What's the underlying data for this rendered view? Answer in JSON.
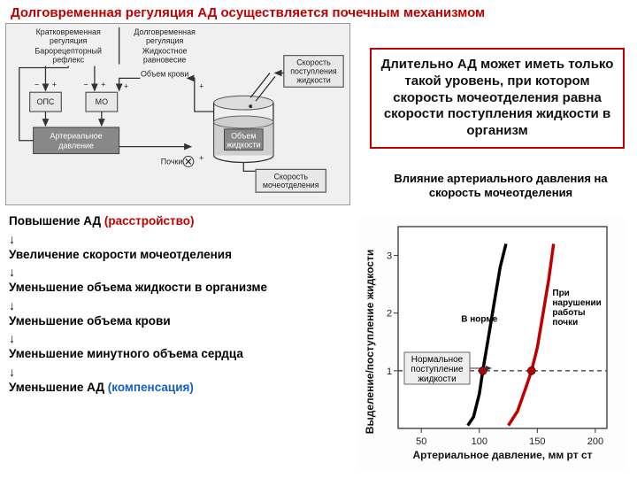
{
  "title": "Долговременная регуляция АД осуществляется почечным механизмом",
  "diagram": {
    "col1_title_l1": "Кратковременная",
    "col1_title_l2": "регуляция",
    "col1_sub_l1": "Барорецепторный",
    "col1_sub_l2": "рефлекс",
    "col2_title_l1": "Долговременная",
    "col2_title_l2": "регуляция",
    "col2_sub_l1": "Жидкостное",
    "col2_sub_l2": "равновесие",
    "ops": "ОПС",
    "mo": "МО",
    "ap_l1": "Артериальное",
    "ap_l2": "давление",
    "vol_l1": "Объем крови",
    "pochki": "Почки",
    "obj_zhid_l1": "Объем",
    "obj_zhid_l2": "жидкости",
    "rate_in_l1": "Скорость",
    "rate_in_l2": "поступления",
    "rate_in_l3": "жидкости",
    "rate_out_l1": "Скорость",
    "rate_out_l2": "мочеотделения"
  },
  "callout": "Длительно АД может иметь только такой уровень, при котором скорость мочеотделения равна скорости поступления жидкости в организм",
  "chart": {
    "caption": "Влияние артериального давления на скорость мочеотделения",
    "x_label": "Артериальное давление, мм рт ст",
    "y_label": "Выделение/поступление жидкости",
    "x_ticks": [
      50,
      100,
      150,
      200
    ],
    "y_ticks": [
      1,
      2,
      3
    ],
    "xlim": [
      30,
      210
    ],
    "ylim": [
      0,
      3.5
    ],
    "normal_intake_l1": "Нормальное",
    "normal_intake_l2": "поступление",
    "normal_intake_l3": "жидкости",
    "annot_norm": "В норме",
    "annot_abnorm_l1": "При",
    "annot_abnorm_l2": "нарушении",
    "annot_abnorm_l3": "работы",
    "annot_abnorm_l4": "почки",
    "curve_black": [
      [
        90,
        0.05
      ],
      [
        95,
        0.2
      ],
      [
        100,
        0.6
      ],
      [
        103,
        1.0
      ],
      [
        108,
        1.6
      ],
      [
        113,
        2.2
      ],
      [
        118,
        2.8
      ],
      [
        123,
        3.2
      ]
    ],
    "curve_red": [
      [
        125,
        0.05
      ],
      [
        133,
        0.3
      ],
      [
        140,
        0.7
      ],
      [
        145,
        1.0
      ],
      [
        150,
        1.4
      ],
      [
        155,
        2.0
      ],
      [
        160,
        2.6
      ],
      [
        164,
        3.2
      ]
    ],
    "marker_black": [
      103,
      1.0
    ],
    "marker_red": [
      145,
      1.0
    ],
    "colors": {
      "black": "#000000",
      "red": "#c00000",
      "dash": "#444444",
      "axis": "#333333",
      "bg": "#ffffff"
    }
  },
  "steps": {
    "s1_a": "Повышение АД ",
    "s1_b": "(расстройство)",
    "s2": "Увеличение скорости мочеотделения",
    "s3": "Уменьшение объема жидкости в организме",
    "s4": "Уменьшение объема крови",
    "s5": "Уменьшение минутного объема сердца",
    "s6_a": "Уменьшение АД ",
    "s6_b": "(компенсация)",
    "arrow": "↓"
  }
}
